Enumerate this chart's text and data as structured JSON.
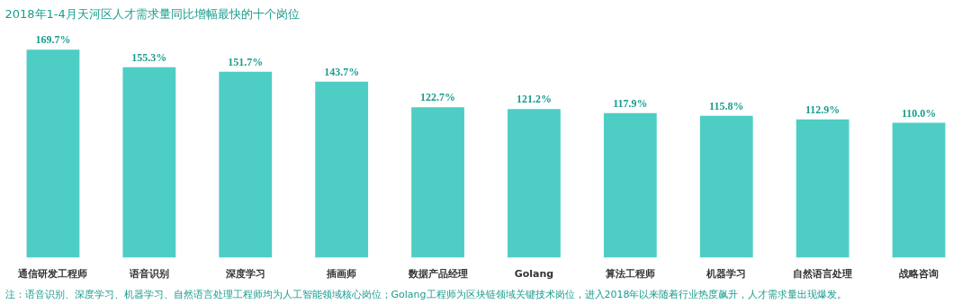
{
  "chart_data": {
    "type": "bar",
    "title": "2018年1-4月天河区人才需求量同比增幅最快的十个岗位",
    "categories": [
      "通信研发工程师",
      "语音识别",
      "深度学习",
      "插画师",
      "数据产品经理",
      "Golang",
      "算法工程师",
      "机器学习",
      "自然语言处理",
      "战略咨询"
    ],
    "values": [
      169.7,
      155.3,
      151.7,
      143.7,
      122.7,
      121.2,
      117.9,
      115.8,
      112.9,
      110.0
    ],
    "value_labels": [
      "169.7%",
      "155.3%",
      "151.7%",
      "143.7%",
      "122.7%",
      "121.2%",
      "117.9%",
      "115.8%",
      "112.9%",
      "110.0%"
    ],
    "color": "#4ecdc4",
    "annotations": [
      "注：语音识别、深度学习、机器学习、自然语言处理工程师均为人工智能领域核心岗位；Golang工程师为区块链领域关键技术岗位，进入2018年以来随着行业热度飙升，人才需求量出现爆发。"
    ],
    "grid": false
  }
}
